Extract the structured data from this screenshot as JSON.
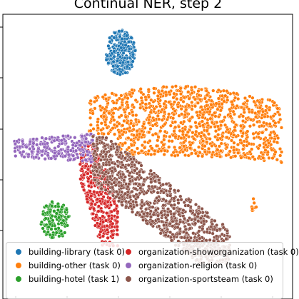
{
  "chart_data": {
    "type": "scatter",
    "title": "Continual NER, step 2",
    "xlabel": "",
    "ylabel": "",
    "grid": false,
    "legend_position": "bottom",
    "series": [
      {
        "name": "building-library (task 0)",
        "color": "#1f77b4",
        "clusters": [
          {
            "x": [
              148,
              190
            ],
            "y": [
              42,
              105
            ],
            "points": 260
          }
        ]
      },
      {
        "name": "building-other (task 0)",
        "color": "#ff7f0e",
        "clusters": [
          {
            "x": [
              125,
              395
            ],
            "y": [
              120,
              245
            ],
            "points": 1150
          },
          {
            "x": [
              349,
              361
            ],
            "y": [
              278,
              296
            ],
            "points": 8
          }
        ]
      },
      {
        "name": "building-hotel (task 1)",
        "color": "#2ca02c",
        "clusters": [
          {
            "x": [
              57,
              98
            ],
            "y": [
              282,
              335
            ],
            "points": 150
          }
        ]
      },
      {
        "name": "organization-showorganization (task 0)",
        "color": "#d62728",
        "clusters": [
          {
            "x": [
              112,
              165
            ],
            "y": [
              198,
              345
            ],
            "points": 380
          }
        ]
      },
      {
        "name": "organization-religion (task 0)",
        "color": "#9467bd",
        "clusters": [
          {
            "x": [
              20,
              132
            ],
            "y": [
              185,
              235
            ],
            "points": 260
          }
        ]
      },
      {
        "name": "organization-sportsteam (task 0)",
        "color": "#8c564b",
        "clusters": [
          {
            "x": [
              130,
              322
            ],
            "y": [
              190,
              370
            ],
            "points": 1050
          }
        ]
      }
    ]
  }
}
